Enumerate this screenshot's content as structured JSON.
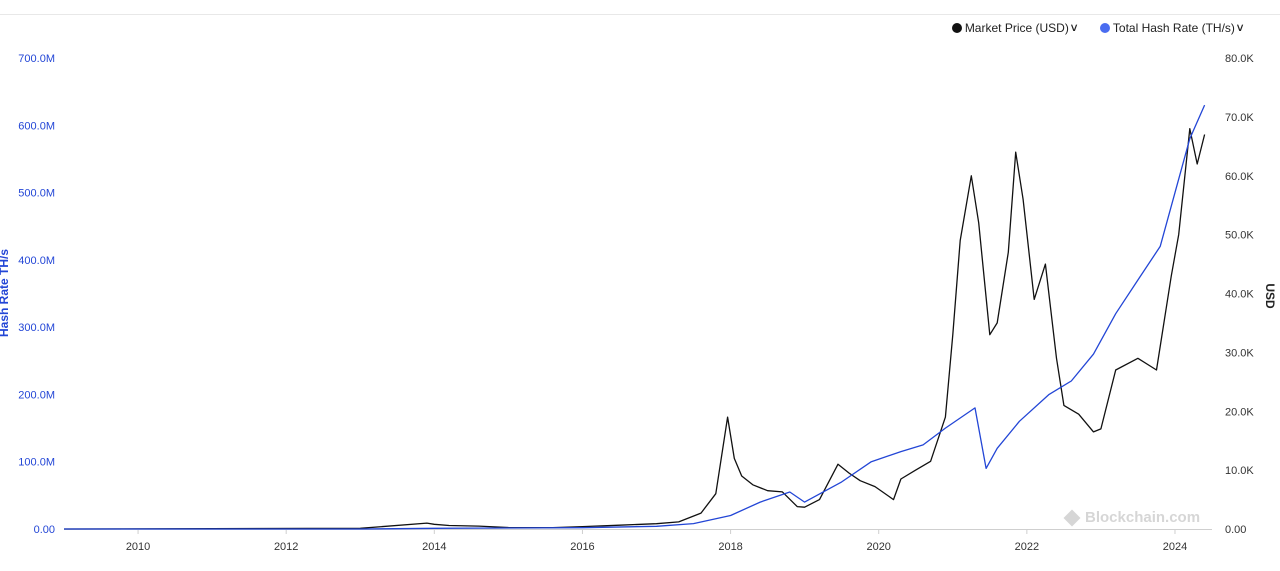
{
  "legend": {
    "price_label": "Market Price (USD)",
    "hash_label": "Total Hash Rate (TH/s)",
    "chevron_icon": "chevron-down-icon"
  },
  "watermark": {
    "text": "Blockchain.com",
    "icon": "blockchain-logo-icon"
  },
  "colors": {
    "price": "#111111",
    "hash": "#2346d6",
    "left_axis": "#2346d6",
    "right_axis": "#333333"
  },
  "chart_data": {
    "type": "line",
    "title": "",
    "grid": false,
    "legend_position": "top-right",
    "x_axis": {
      "range": [
        2009.0,
        2024.5
      ],
      "ticks": [
        2010,
        2012,
        2014,
        2016,
        2018,
        2020,
        2022,
        2024
      ],
      "tick_labels": [
        "2010",
        "2012",
        "2014",
        "2016",
        "2018",
        "2020",
        "2022",
        "2024"
      ]
    },
    "y_left": {
      "label": "Hash Rate TH/s",
      "range": [
        0,
        700000000
      ],
      "ticks": [
        0,
        100000000,
        200000000,
        300000000,
        400000000,
        500000000,
        600000000,
        700000000
      ],
      "tick_labels": [
        "0.00",
        "100.0M",
        "200.0M",
        "300.0M",
        "400.0M",
        "500.0M",
        "600.0M",
        "700.0M"
      ]
    },
    "y_right": {
      "label": "USD",
      "range": [
        0,
        80000
      ],
      "ticks": [
        0,
        10000,
        20000,
        30000,
        40000,
        50000,
        60000,
        70000,
        80000
      ],
      "tick_labels": [
        "0.00",
        "10.0K",
        "20.0K",
        "30.0K",
        "40.0K",
        "50.0K",
        "60.0K",
        "70.0K",
        "80.0K"
      ]
    },
    "series": [
      {
        "name": "Market Price (USD)",
        "axis": "right",
        "x": [
          2009.0,
          2013.0,
          2013.9,
          2014.0,
          2014.2,
          2014.6,
          2015.0,
          2015.6,
          2016.0,
          2016.5,
          2017.0,
          2017.3,
          2017.6,
          2017.8,
          2017.96,
          2018.05,
          2018.15,
          2018.3,
          2018.5,
          2018.7,
          2018.9,
          2019.0,
          2019.2,
          2019.45,
          2019.6,
          2019.75,
          2019.95,
          2020.2,
          2020.3,
          2020.5,
          2020.7,
          2020.9,
          2021.0,
          2021.1,
          2021.25,
          2021.35,
          2021.5,
          2021.6,
          2021.75,
          2021.85,
          2021.95,
          2022.1,
          2022.25,
          2022.4,
          2022.5,
          2022.7,
          2022.9,
          2023.0,
          2023.2,
          2023.5,
          2023.75,
          2023.85,
          2023.95,
          2024.05,
          2024.2,
          2024.3,
          2024.4
        ],
        "values": [
          0,
          120,
          1000,
          800,
          600,
          500,
          250,
          230,
          400,
          650,
          900,
          1200,
          2700,
          6000,
          19000,
          12000,
          9000,
          7500,
          6500,
          6300,
          3800,
          3700,
          5000,
          11000,
          9500,
          8200,
          7200,
          5000,
          8500,
          10000,
          11500,
          19000,
          33000,
          49000,
          60000,
          52000,
          33000,
          35000,
          47000,
          64000,
          56000,
          39000,
          45000,
          29000,
          21000,
          19500,
          16500,
          17000,
          27000,
          29000,
          27000,
          35000,
          43000,
          50000,
          68000,
          62000,
          67000
        ]
      },
      {
        "name": "Total Hash Rate (TH/s)",
        "axis": "left",
        "x": [
          2009.0,
          2013.0,
          2014.0,
          2015.0,
          2016.0,
          2017.0,
          2017.5,
          2018.0,
          2018.4,
          2018.8,
          2019.0,
          2019.5,
          2019.9,
          2020.3,
          2020.6,
          2020.9,
          2021.3,
          2021.45,
          2021.6,
          2021.9,
          2022.3,
          2022.6,
          2022.9,
          2023.2,
          2023.5,
          2023.8,
          2024.0,
          2024.2,
          2024.4
        ],
        "values": [
          0,
          0,
          1000000,
          1500000,
          2000000,
          4000000,
          8000000,
          20000000,
          40000000,
          55000000,
          40000000,
          70000000,
          100000000,
          115000000,
          125000000,
          150000000,
          180000000,
          90000000,
          120000000,
          160000000,
          200000000,
          220000000,
          260000000,
          320000000,
          370000000,
          420000000,
          500000000,
          580000000,
          630000000
        ]
      }
    ]
  }
}
